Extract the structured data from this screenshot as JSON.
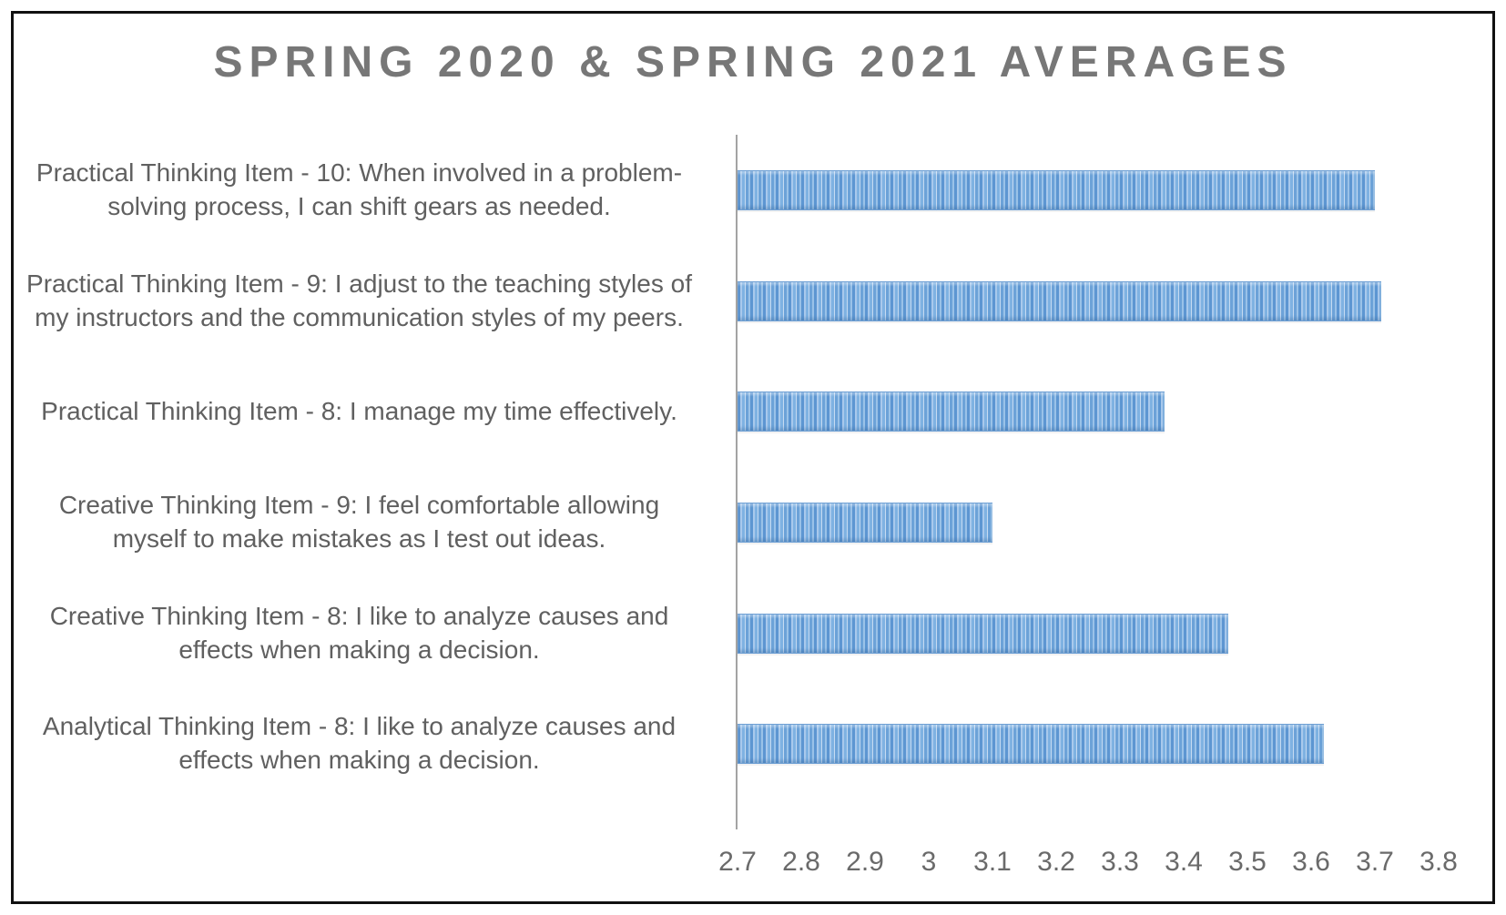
{
  "window": {
    "background": "#ffffff",
    "frame_border_color": "#101010"
  },
  "chart_data": {
    "type": "bar",
    "orientation": "horizontal",
    "title": "SPRING 2020 & SPRING 2021 AVERAGES",
    "categories": [
      "Practical Thinking Item - 10: When involved in a problem-solving process, I can shift gears as needed.",
      "Practical Thinking Item - 9: I adjust to the teaching styles of my instructors and the communication styles of my peers.",
      "Practical Thinking Item - 8: I manage my time effectively.",
      "Creative Thinking Item - 9: I feel comfortable allowing myself to make mistakes as I test out ideas.",
      "Creative Thinking Item - 8: I like to analyze causes and effects when making a decision.",
      "Analytical Thinking Item - 8: I like to analyze causes and effects when making a decision."
    ],
    "values": [
      3.7,
      3.71,
      3.37,
      3.1,
      3.47,
      3.62
    ],
    "xlim": [
      2.7,
      3.8
    ],
    "xticks": [
      "2.7",
      "2.8",
      "2.9",
      "3",
      "3.1",
      "3.2",
      "3.3",
      "3.4",
      "3.5",
      "3.6",
      "3.7",
      "3.8"
    ],
    "grid": false,
    "legend": null,
    "colors": {
      "title_text": "#777777",
      "category_text": "#606060",
      "tick_text": "#6a6a6a",
      "axis_line": "#a3a3a3",
      "bar_stripe_dark": "#5d96d2",
      "bar_stripe_mid": "#7fb2e2",
      "bar_stripe_light": "#a9c9ec",
      "bar_stripe_pale": "#c6dbf2"
    }
  }
}
